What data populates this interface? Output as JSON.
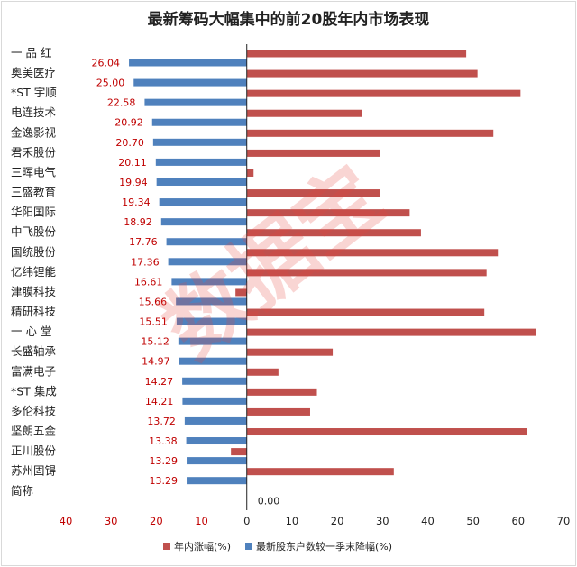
{
  "chart_data": {
    "type": "bar",
    "orientation": "horizontal",
    "title": "最新筹码大幅集中的前20股年内市场表现",
    "categories": [
      "一 品 红",
      "奥美医疗",
      "*ST 宇顺",
      "电连技术",
      "金逸影视",
      "君禾股份",
      "三晖电气",
      "三盛教育",
      "华阳国际",
      "中飞股份",
      "国统股份",
      "亿纬锂能",
      "津膜科技",
      "精研科技",
      "一 心 堂",
      "长盛轴承",
      "富满电子",
      "*ST 集成",
      "多伦科技",
      "坚朗五金",
      "正川股份",
      "苏州固锝",
      "简称"
    ],
    "series": [
      {
        "name": "年内涨幅(%)",
        "color": "#c0504d",
        "values": [
          48.5,
          51,
          60.5,
          25.5,
          54.5,
          29.5,
          1.5,
          29.5,
          36,
          38.5,
          55.5,
          53,
          -2.5,
          52.5,
          64,
          19,
          7,
          15.5,
          14,
          62,
          -3.5,
          32.5,
          null
        ]
      },
      {
        "name": "最新股东户数较一季末降幅(%)",
        "color": "#4f81bd",
        "values": [
          26.04,
          25.0,
          22.58,
          20.92,
          20.7,
          20.11,
          19.94,
          19.34,
          18.92,
          17.76,
          17.36,
          16.61,
          15.66,
          15.51,
          15.12,
          14.97,
          14.27,
          14.21,
          13.72,
          13.38,
          13.29,
          13.29,
          0.0
        ],
        "labels": [
          "26.04",
          "25.00",
          "22.58",
          "20.92",
          "20.70",
          "20.11",
          "19.94",
          "19.34",
          "18.92",
          "17.76",
          "17.36",
          "16.61",
          "15.66",
          "15.51",
          "15.12",
          "14.97",
          "14.27",
          "14.21",
          "13.72",
          "13.38",
          "13.29",
          "13.29",
          "0.00"
        ],
        "plotted_as": "negative_left"
      }
    ],
    "xlim": [
      -40,
      70
    ],
    "xticks": [
      -40,
      -30,
      -20,
      -10,
      0,
      10,
      20,
      30,
      40,
      50,
      60,
      70
    ],
    "xtick_labels": [
      "40",
      "30",
      "20",
      "10",
      "0",
      "10",
      "20",
      "30",
      "40",
      "50",
      "60",
      "70"
    ],
    "grid": false,
    "legend_position": "bottom",
    "data_label_color": "#c00000",
    "watermark": "数据宝"
  }
}
